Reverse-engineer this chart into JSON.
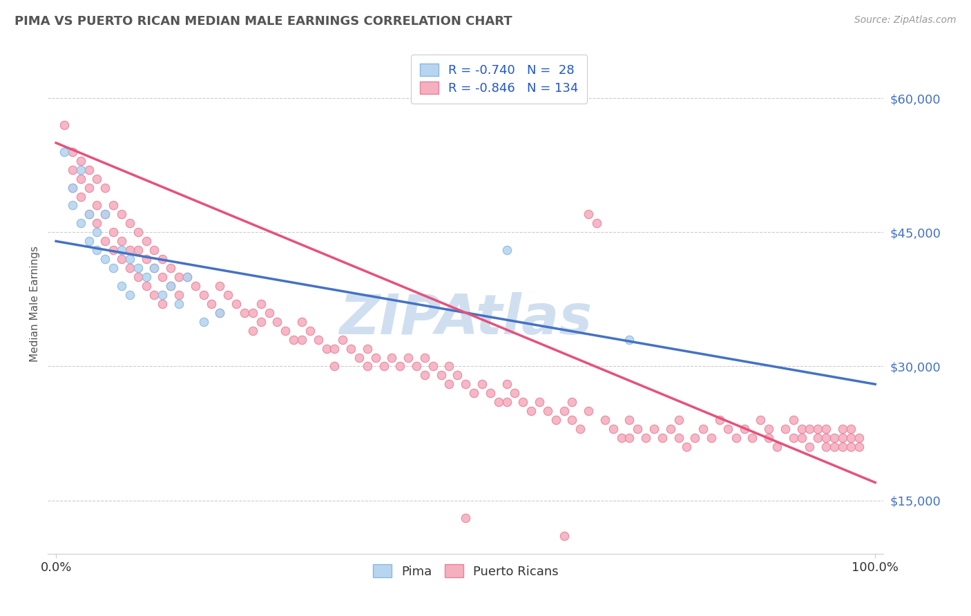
{
  "title": "PIMA VS PUERTO RICAN MEDIAN MALE EARNINGS CORRELATION CHART",
  "source": "Source: ZipAtlas.com",
  "ylabel": "Median Male Earnings",
  "xlim": [
    -1.0,
    101.0
  ],
  "ylim": [
    9000,
    65000
  ],
  "yticks": [
    15000,
    30000,
    45000,
    60000
  ],
  "ytick_labels": [
    "$15,000",
    "$30,000",
    "$45,000",
    "$60,000"
  ],
  "xticks": [
    0.0,
    100.0
  ],
  "xtick_labels": [
    "0.0%",
    "100.0%"
  ],
  "pima_color": "#85b8e0",
  "pima_fill": "#b8d5ef",
  "pr_color": "#e8809a",
  "pr_fill": "#f5b0c0",
  "line_pima": "#4472c4",
  "line_pr": "#e8507a",
  "legend_color": "#2255cc",
  "watermark_color": "#d0dff0",
  "pima_points": [
    [
      1,
      54000
    ],
    [
      2,
      50000
    ],
    [
      2,
      48000
    ],
    [
      3,
      52000
    ],
    [
      3,
      46000
    ],
    [
      4,
      47000
    ],
    [
      4,
      44000
    ],
    [
      5,
      45000
    ],
    [
      5,
      43000
    ],
    [
      6,
      47000
    ],
    [
      6,
      42000
    ],
    [
      7,
      41000
    ],
    [
      8,
      43000
    ],
    [
      8,
      39000
    ],
    [
      9,
      42000
    ],
    [
      9,
      38000
    ],
    [
      10,
      41000
    ],
    [
      11,
      40000
    ],
    [
      12,
      41000
    ],
    [
      13,
      38000
    ],
    [
      14,
      39000
    ],
    [
      15,
      37000
    ],
    [
      16,
      40000
    ],
    [
      18,
      35000
    ],
    [
      20,
      36000
    ],
    [
      55,
      43000
    ],
    [
      70,
      33000
    ]
  ],
  "pr_points": [
    [
      1,
      57000
    ],
    [
      2,
      54000
    ],
    [
      2,
      52000
    ],
    [
      2,
      50000
    ],
    [
      3,
      53000
    ],
    [
      3,
      51000
    ],
    [
      3,
      49000
    ],
    [
      4,
      52000
    ],
    [
      4,
      50000
    ],
    [
      4,
      47000
    ],
    [
      5,
      51000
    ],
    [
      5,
      48000
    ],
    [
      5,
      46000
    ],
    [
      6,
      50000
    ],
    [
      6,
      47000
    ],
    [
      6,
      44000
    ],
    [
      7,
      48000
    ],
    [
      7,
      45000
    ],
    [
      7,
      43000
    ],
    [
      8,
      47000
    ],
    [
      8,
      44000
    ],
    [
      8,
      42000
    ],
    [
      9,
      46000
    ],
    [
      9,
      43000
    ],
    [
      9,
      41000
    ],
    [
      10,
      45000
    ],
    [
      10,
      43000
    ],
    [
      10,
      40000
    ],
    [
      11,
      44000
    ],
    [
      11,
      42000
    ],
    [
      11,
      39000
    ],
    [
      12,
      43000
    ],
    [
      12,
      41000
    ],
    [
      12,
      38000
    ],
    [
      13,
      42000
    ],
    [
      13,
      40000
    ],
    [
      13,
      37000
    ],
    [
      14,
      41000
    ],
    [
      14,
      39000
    ],
    [
      15,
      40000
    ],
    [
      15,
      38000
    ],
    [
      16,
      40000
    ],
    [
      17,
      39000
    ],
    [
      18,
      38000
    ],
    [
      19,
      37000
    ],
    [
      20,
      39000
    ],
    [
      20,
      36000
    ],
    [
      21,
      38000
    ],
    [
      22,
      37000
    ],
    [
      23,
      36000
    ],
    [
      24,
      36000
    ],
    [
      24,
      34000
    ],
    [
      25,
      37000
    ],
    [
      25,
      35000
    ],
    [
      26,
      36000
    ],
    [
      27,
      35000
    ],
    [
      28,
      34000
    ],
    [
      29,
      33000
    ],
    [
      30,
      35000
    ],
    [
      30,
      33000
    ],
    [
      31,
      34000
    ],
    [
      32,
      33000
    ],
    [
      33,
      32000
    ],
    [
      34,
      32000
    ],
    [
      34,
      30000
    ],
    [
      35,
      33000
    ],
    [
      36,
      32000
    ],
    [
      37,
      31000
    ],
    [
      38,
      30000
    ],
    [
      38,
      32000
    ],
    [
      39,
      31000
    ],
    [
      40,
      30000
    ],
    [
      41,
      31000
    ],
    [
      42,
      30000
    ],
    [
      43,
      31000
    ],
    [
      44,
      30000
    ],
    [
      45,
      29000
    ],
    [
      45,
      31000
    ],
    [
      46,
      30000
    ],
    [
      47,
      29000
    ],
    [
      48,
      30000
    ],
    [
      48,
      28000
    ],
    [
      49,
      29000
    ],
    [
      50,
      28000
    ],
    [
      51,
      27000
    ],
    [
      52,
      28000
    ],
    [
      53,
      27000
    ],
    [
      54,
      26000
    ],
    [
      55,
      28000
    ],
    [
      55,
      26000
    ],
    [
      56,
      27000
    ],
    [
      57,
      26000
    ],
    [
      58,
      25000
    ],
    [
      59,
      26000
    ],
    [
      60,
      25000
    ],
    [
      61,
      24000
    ],
    [
      62,
      25000
    ],
    [
      63,
      26000
    ],
    [
      63,
      24000
    ],
    [
      64,
      23000
    ],
    [
      65,
      25000
    ],
    [
      65,
      47000
    ],
    [
      66,
      46000
    ],
    [
      67,
      24000
    ],
    [
      68,
      23000
    ],
    [
      69,
      22000
    ],
    [
      70,
      24000
    ],
    [
      70,
      22000
    ],
    [
      71,
      23000
    ],
    [
      72,
      22000
    ],
    [
      73,
      23000
    ],
    [
      74,
      22000
    ],
    [
      75,
      23000
    ],
    [
      76,
      22000
    ],
    [
      76,
      24000
    ],
    [
      77,
      21000
    ],
    [
      78,
      22000
    ],
    [
      79,
      23000
    ],
    [
      80,
      22000
    ],
    [
      81,
      24000
    ],
    [
      82,
      23000
    ],
    [
      83,
      22000
    ],
    [
      84,
      23000
    ],
    [
      85,
      22000
    ],
    [
      86,
      24000
    ],
    [
      87,
      23000
    ],
    [
      87,
      22000
    ],
    [
      88,
      21000
    ],
    [
      89,
      23000
    ],
    [
      90,
      22000
    ],
    [
      90,
      24000
    ],
    [
      91,
      23000
    ],
    [
      91,
      22000
    ],
    [
      92,
      21000
    ],
    [
      92,
      23000
    ],
    [
      93,
      22000
    ],
    [
      93,
      23000
    ],
    [
      94,
      22000
    ],
    [
      94,
      21000
    ],
    [
      94,
      23000
    ],
    [
      95,
      22000
    ],
    [
      95,
      21000
    ],
    [
      96,
      23000
    ],
    [
      96,
      22000
    ],
    [
      96,
      21000
    ],
    [
      97,
      23000
    ],
    [
      97,
      22000
    ],
    [
      97,
      21000
    ],
    [
      98,
      22000
    ],
    [
      98,
      21000
    ],
    [
      50,
      13000
    ],
    [
      62,
      11000
    ]
  ]
}
